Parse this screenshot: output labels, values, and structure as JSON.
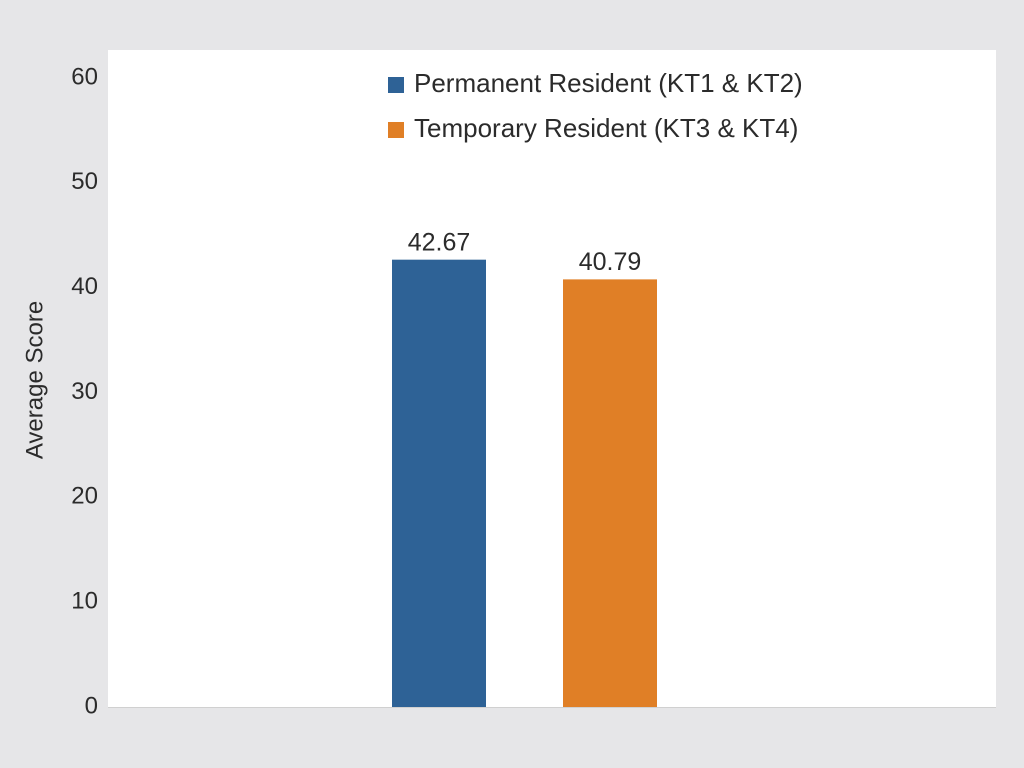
{
  "chart_data": {
    "type": "bar",
    "y_label": "Average Score",
    "categories": [
      null
    ],
    "series": [
      {
        "name": "Permanent Resident (KT1 & KT2)",
        "color": "#2e6296",
        "values": [
          42.67
        ]
      },
      {
        "name": "Temporary Resident (KT3 & KT4)",
        "color": "#e07f26",
        "values": [
          40.79
        ]
      }
    ],
    "ylim": [
      0,
      60
    ],
    "yticks": [
      0,
      10,
      20,
      30,
      40,
      50,
      60
    ],
    "grid": false
  }
}
